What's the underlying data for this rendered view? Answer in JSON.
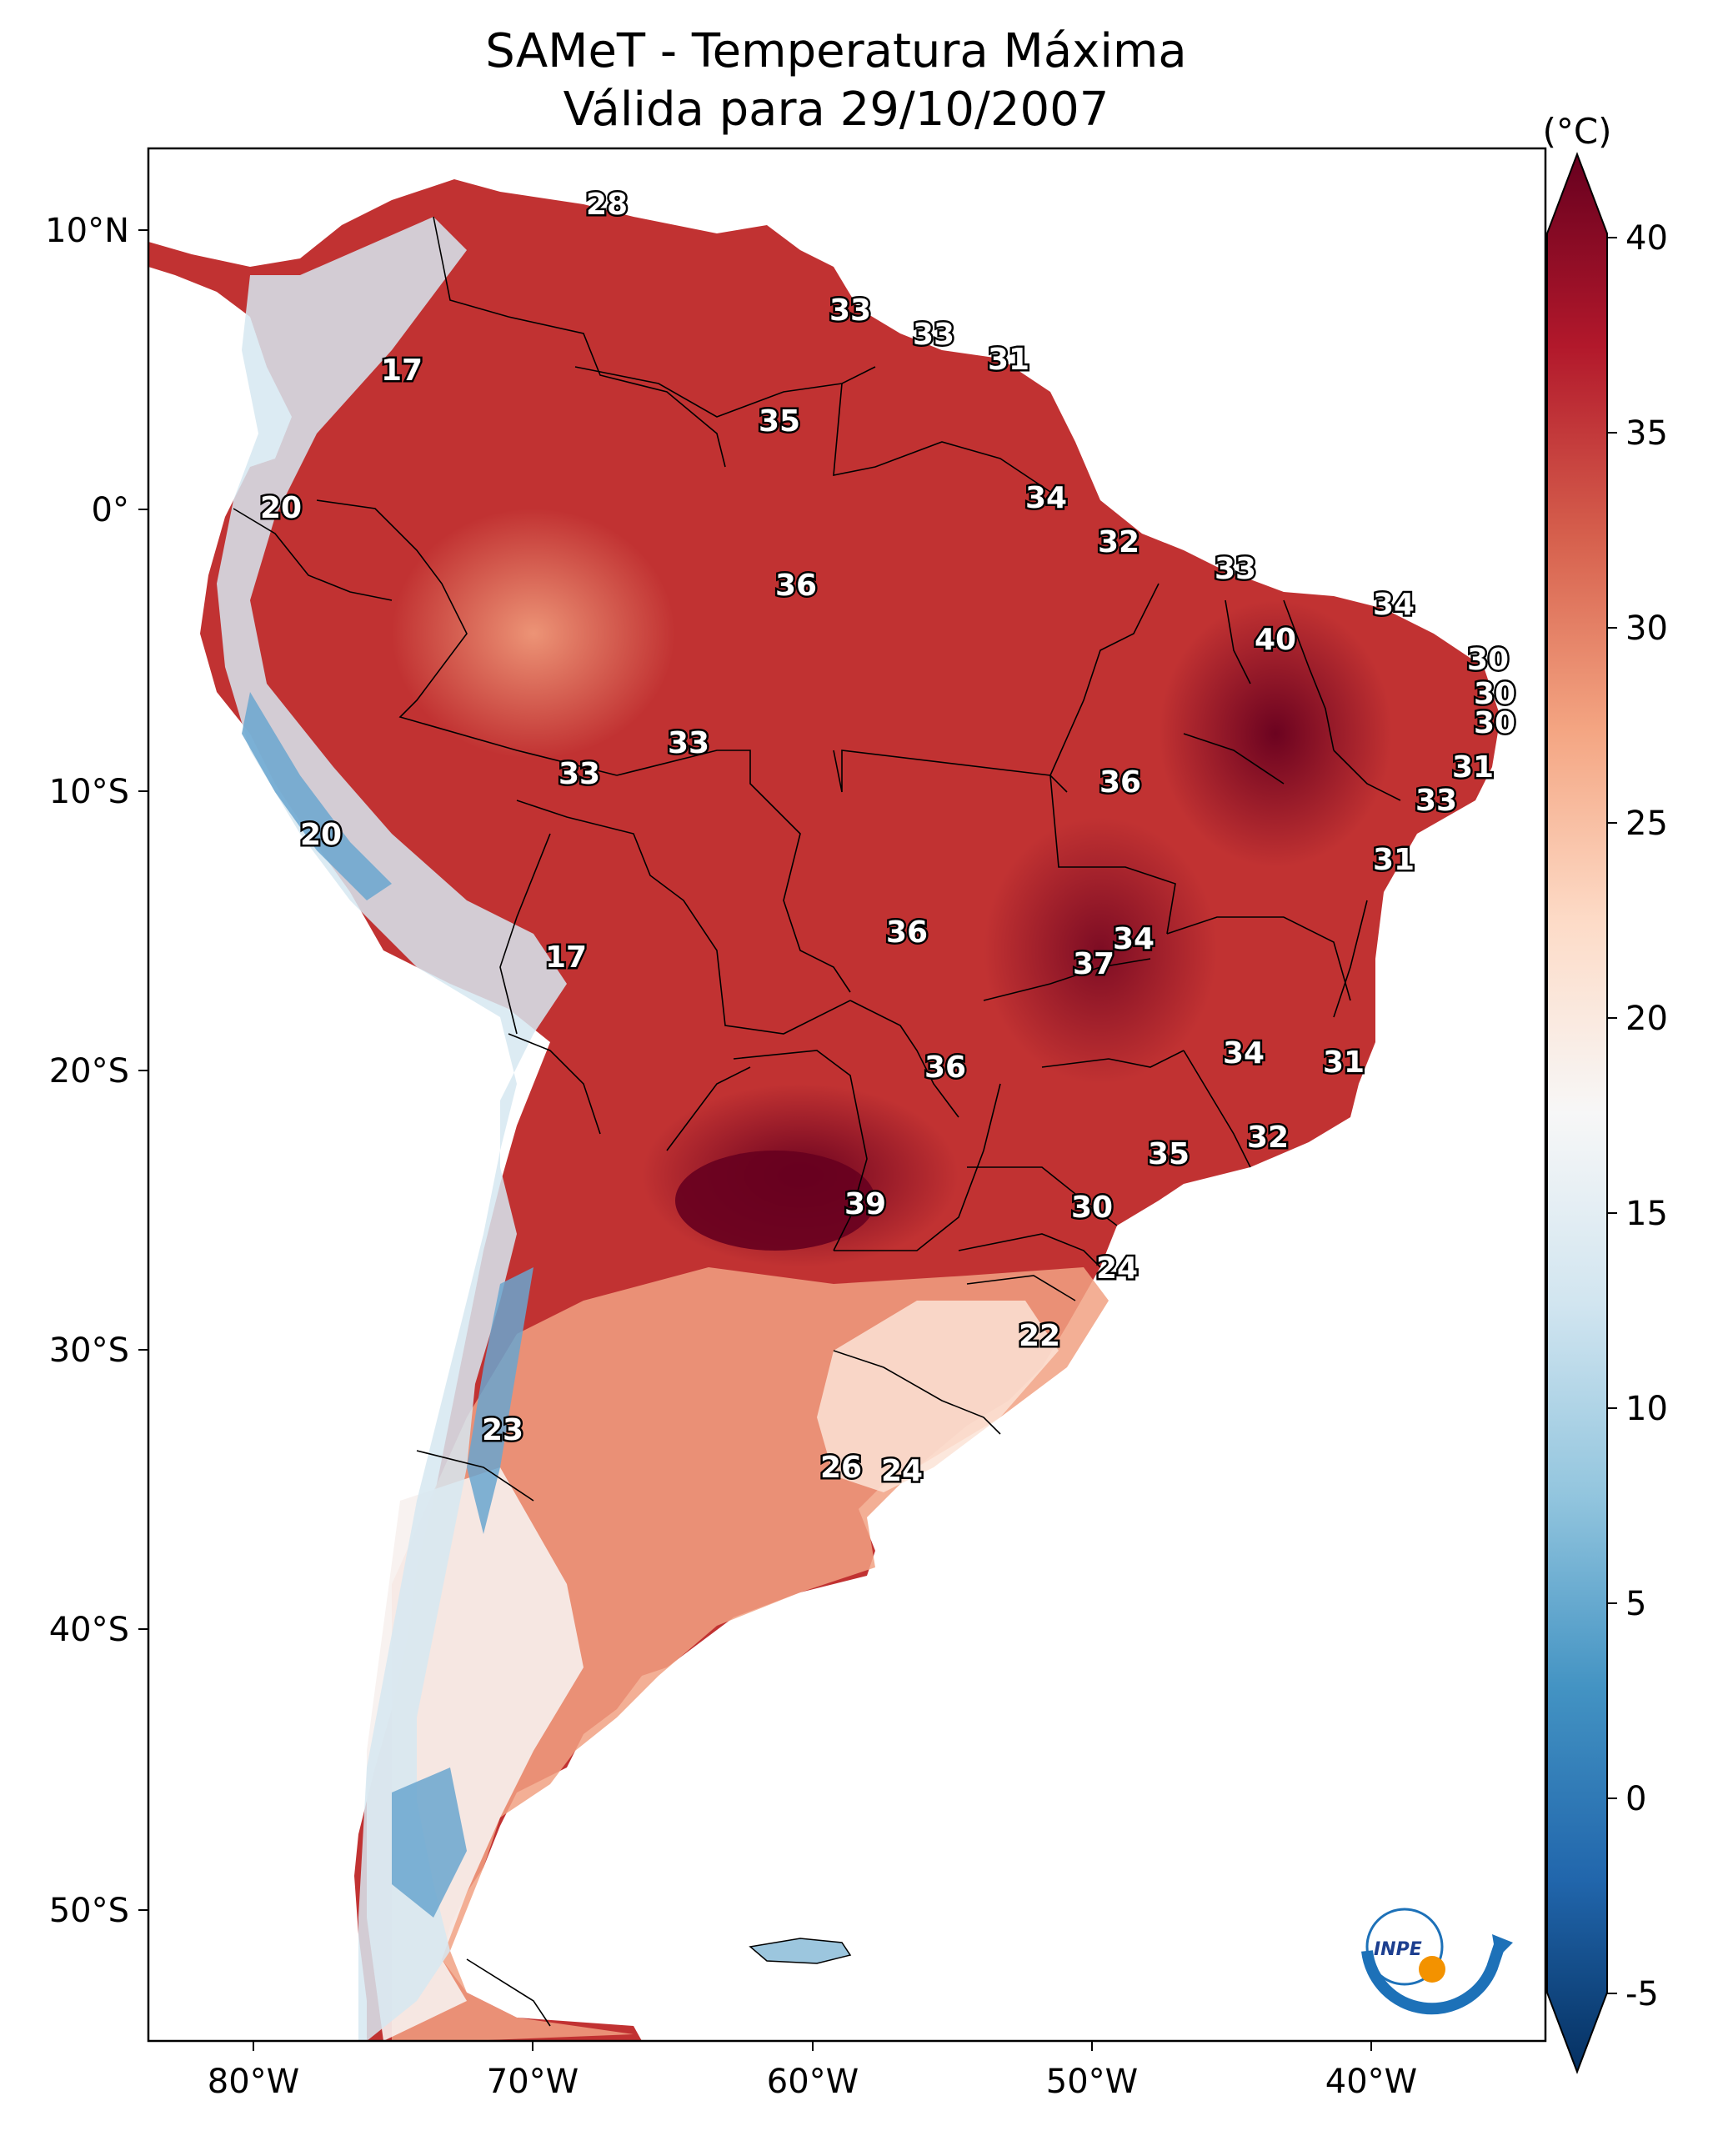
{
  "figure": {
    "title_line1": "SAMeT - Temperatura Máxima",
    "title_line2": "Válida para 29/10/2007"
  },
  "axes": {
    "lon_ticks": [
      "80°W",
      "70°W",
      "60°W",
      "50°W",
      "40°W"
    ],
    "lat_ticks": [
      "10°N",
      "0°",
      "10°S",
      "20°S",
      "30°S",
      "40°S",
      "50°S"
    ]
  },
  "colorbar": {
    "unit": "(°C)",
    "tick_labels": [
      "40",
      "35",
      "30",
      "25",
      "20",
      "15",
      "10",
      "5",
      "0",
      "-5"
    ],
    "min": -5,
    "max": 40,
    "colors": [
      "#053061",
      "#2166ac",
      "#4393c3",
      "#92c5de",
      "#d1e5f0",
      "#f7f7f7",
      "#fddbc7",
      "#f4a582",
      "#d6604d",
      "#b2182b",
      "#67001f"
    ]
  },
  "map": {
    "contour_labels": [
      "28",
      "17",
      "33",
      "33",
      "31",
      "35",
      "20",
      "34",
      "32",
      "33",
      "36",
      "34",
      "40",
      "30",
      "30",
      "30",
      "33",
      "33",
      "36",
      "31",
      "33",
      "20",
      "31",
      "36",
      "34",
      "17",
      "37",
      "36",
      "34",
      "31",
      "32",
      "35",
      "39",
      "30",
      "24",
      "22",
      "23",
      "26",
      "24"
    ],
    "logo_text": "INPE"
  }
}
